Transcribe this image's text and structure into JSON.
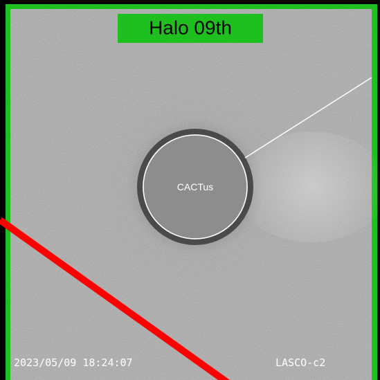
{
  "overlay": {
    "title": "Halo 09th"
  },
  "image": {
    "center_label": "CACTus",
    "timestamp": "2023/05/09 18:24:07",
    "instrument": "LASCO-c2"
  }
}
